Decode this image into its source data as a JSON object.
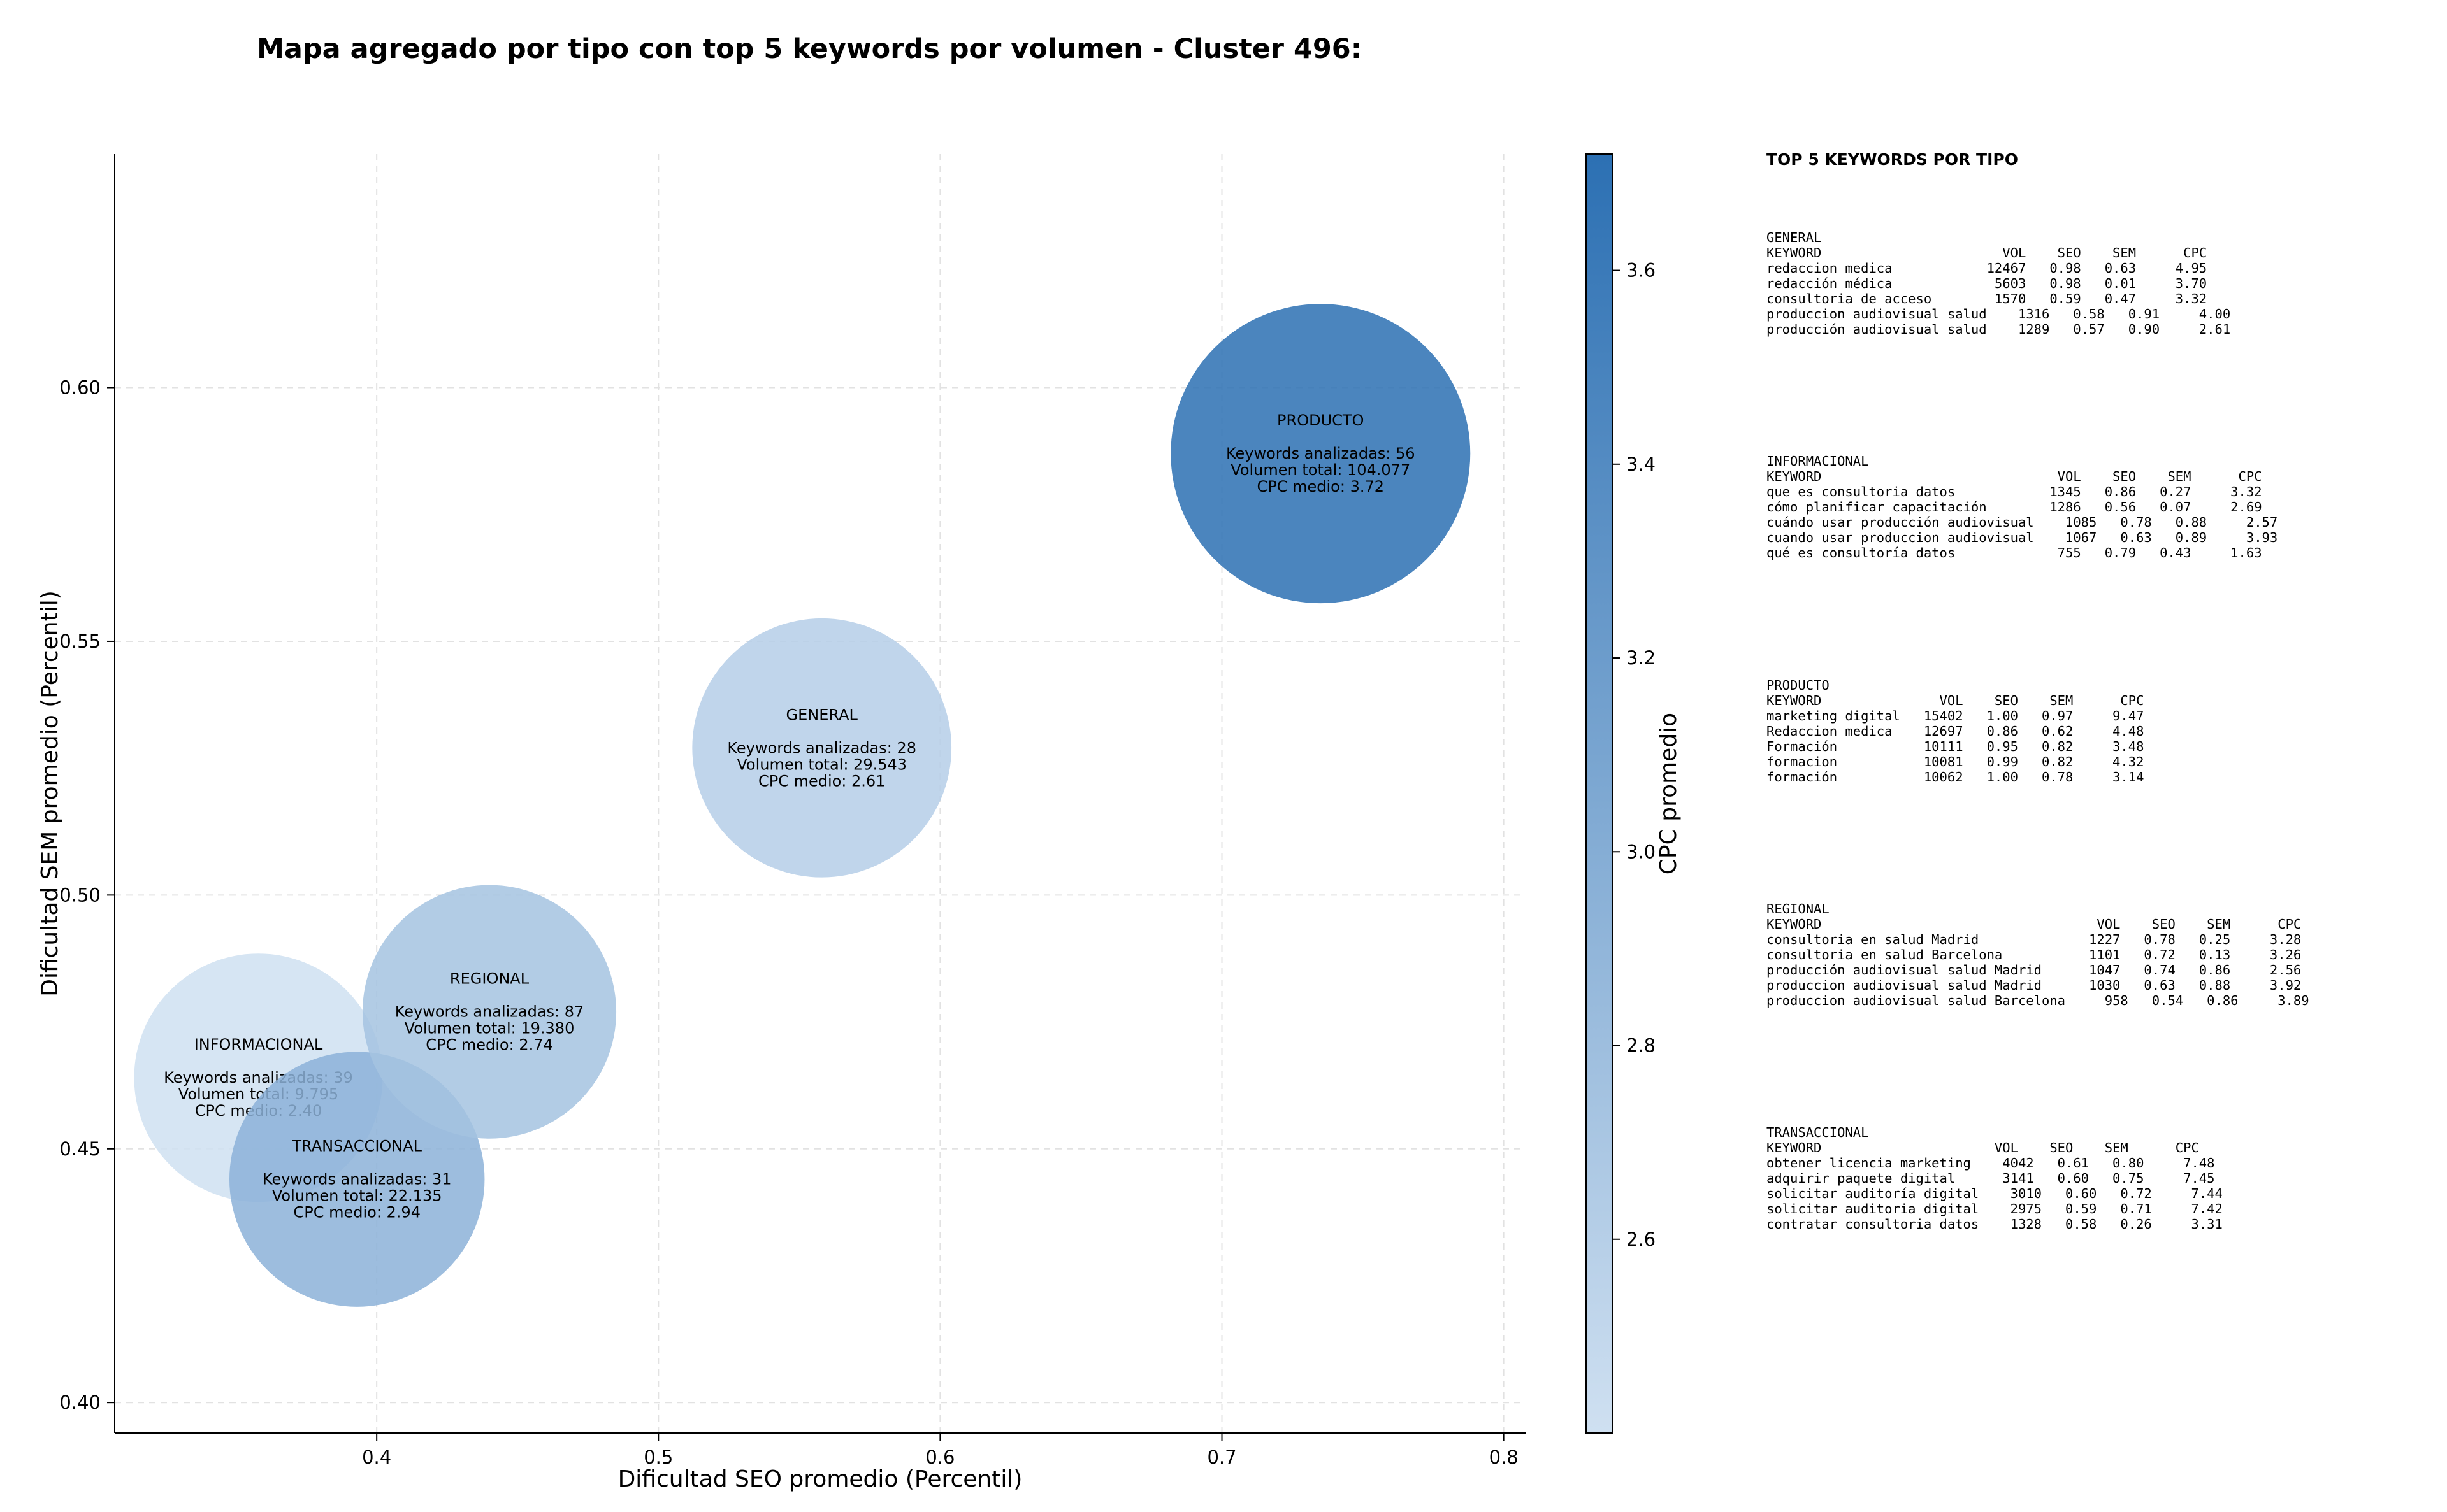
{
  "chart_data": {
    "type": "bubble",
    "title": "Mapa agregado por tipo con top 5 keywords por volumen - Cluster 496:",
    "xlabel": "Dificultad SEO promedio (Percentil)",
    "ylabel": "Dificultad SEM promedio (Percentil)",
    "xlim": [
      0.307,
      0.808
    ],
    "ylim": [
      0.394,
      0.646
    ],
    "x_ticks": [
      0.4,
      0.5,
      0.6,
      0.7,
      0.8
    ],
    "x_tick_labels": [
      "0.4",
      "0.5",
      "0.6",
      "0.7",
      "0.8"
    ],
    "y_ticks": [
      0.4,
      0.45,
      0.5,
      0.55,
      0.6
    ],
    "y_tick_labels": [
      "0.40",
      "0.45",
      "0.50",
      "0.55",
      "0.60"
    ],
    "grid": true,
    "colorbar": {
      "label": "CPC promedio",
      "min": 2.4,
      "max": 3.72,
      "ticks": [
        2.6,
        2.8,
        3.0,
        3.2,
        3.4,
        3.6
      ],
      "tick_labels": [
        "2.6",
        "2.8",
        "3.0",
        "3.2",
        "3.4",
        "3.6"
      ],
      "colors": [
        "#cfe0f1",
        "#2c70b3"
      ]
    },
    "points": [
      {
        "name": "INFORMACIONAL",
        "x": 0.358,
        "y": 0.464,
        "keywords": 39,
        "volume": 9795,
        "cpc": 2.4,
        "lines": [
          "INFORMACIONAL",
          "",
          "Keywords analizadas: 39",
          "Volumen total: 9.795",
          "CPC medio: 2.40"
        ]
      },
      {
        "name": "TRANSACCIONAL",
        "x": 0.393,
        "y": 0.444,
        "keywords": 31,
        "volume": 22135,
        "cpc": 2.94,
        "lines": [
          "TRANSACCIONAL",
          "",
          "Keywords analizadas: 31",
          "Volumen total: 22.135",
          "CPC medio: 2.94"
        ]
      },
      {
        "name": "REGIONAL",
        "x": 0.44,
        "y": 0.477,
        "keywords": 87,
        "volume": 19380,
        "cpc": 2.74,
        "lines": [
          "REGIONAL",
          "",
          "Keywords analizadas: 87",
          "Volumen total: 19.380",
          "CPC medio: 2.74"
        ]
      },
      {
        "name": "GENERAL",
        "x": 0.558,
        "y": 0.529,
        "keywords": 28,
        "volume": 29543,
        "cpc": 2.61,
        "lines": [
          "GENERAL",
          "",
          "Keywords analizadas: 28",
          "Volumen total: 29.543",
          "CPC medio: 2.61"
        ]
      },
      {
        "name": "PRODUCTO",
        "x": 0.735,
        "y": 0.587,
        "keywords": 56,
        "volume": 104077,
        "cpc": 3.72,
        "lines": [
          "PRODUCTO",
          "",
          "Keywords analizadas: 56",
          "Volumen total: 104.077",
          "CPC medio: 3.72"
        ]
      }
    ]
  },
  "keyword_panel": {
    "heading": "TOP 5 KEYWORDS POR TIPO",
    "blocks": [
      {
        "type": "GENERAL",
        "text": "GENERAL\nKEYWORD                       VOL    SEO    SEM      CPC\nredaccion medica            12467   0.98   0.63     4.95\nredacción médica             5603   0.98   0.01     3.70\nconsultoria de acceso        1570   0.59   0.47     3.32\nproduccion audiovisual salud    1316   0.58   0.91     4.00\nproducción audiovisual salud    1289   0.57   0.90     2.61"
      },
      {
        "type": "INFORMACIONAL",
        "text": "INFORMACIONAL\nKEYWORD                              VOL    SEO    SEM      CPC\nque es consultoria datos            1345   0.86   0.27     3.32\ncómo planificar capacitación        1286   0.56   0.07     2.69\ncuándo usar producción audiovisual    1085   0.78   0.88     2.57\ncuando usar produccion audiovisual    1067   0.63   0.89     3.93\nqué es consultoría datos             755   0.79   0.43     1.63"
      },
      {
        "type": "PRODUCTO",
        "text": "PRODUCTO\nKEYWORD               VOL    SEO    SEM      CPC\nmarketing digital   15402   1.00   0.97     9.47\nRedaccion medica    12697   0.86   0.62     4.48\nFormación           10111   0.95   0.82     3.48\nformacion           10081   0.99   0.82     4.32\nformación           10062   1.00   0.78     3.14"
      },
      {
        "type": "REGIONAL",
        "text": "REGIONAL\nKEYWORD                                   VOL    SEO    SEM      CPC\nconsultoria en salud Madrid              1227   0.78   0.25     3.28\nconsultoria en salud Barcelona           1101   0.72   0.13     3.26\nproducción audiovisual salud Madrid      1047   0.74   0.86     2.56\nproduccion audiovisual salud Madrid      1030   0.63   0.88     3.92\nproduccion audiovisual salud Barcelona     958   0.54   0.86     3.89"
      },
      {
        "type": "TRANSACCIONAL",
        "text": "TRANSACCIONAL\nKEYWORD                      VOL    SEO    SEM      CPC\nobtener licencia marketing    4042   0.61   0.80     7.48\nadquirir paquete digital      3141   0.60   0.75     7.45\nsolicitar auditoría digital    3010   0.60   0.72     7.44\nsolicitar auditoria digital    2975   0.59   0.71     7.42\ncontratar consultoria datos    1328   0.58   0.26     3.31"
      }
    ]
  }
}
